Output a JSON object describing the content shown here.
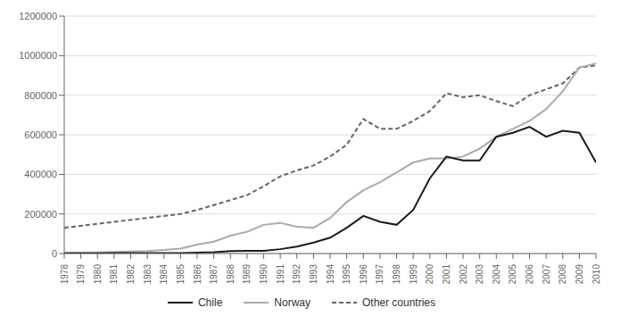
{
  "chart_data": {
    "type": "line",
    "x": [
      1978,
      1979,
      1980,
      1981,
      1982,
      1983,
      1984,
      1985,
      1986,
      1987,
      1988,
      1989,
      1990,
      1991,
      1992,
      1993,
      1994,
      1995,
      1996,
      1997,
      1998,
      1999,
      2000,
      2001,
      2002,
      2003,
      2004,
      2005,
      2006,
      2007,
      2008,
      2009,
      2010
    ],
    "series": [
      {
        "name": "Chile",
        "color": "#1a1a1a",
        "line_style": "solid",
        "values": [
          1000,
          1000,
          1500,
          2000,
          2000,
          2000,
          2000,
          2000,
          4000,
          7000,
          12000,
          14000,
          14000,
          22000,
          35000,
          55000,
          80000,
          130000,
          190000,
          160000,
          145000,
          220000,
          380000,
          490000,
          470000,
          470000,
          590000,
          610000,
          640000,
          590000,
          620000,
          610000,
          460000
        ]
      },
      {
        "name": "Norway",
        "color": "#aaaaaa",
        "line_style": "solid",
        "values": [
          4000,
          4000,
          6000,
          8000,
          10000,
          12000,
          18000,
          25000,
          45000,
          60000,
          90000,
          110000,
          145000,
          155000,
          135000,
          130000,
          180000,
          260000,
          320000,
          360000,
          410000,
          460000,
          480000,
          480000,
          490000,
          530000,
          590000,
          630000,
          670000,
          730000,
          820000,
          940000,
          960000
        ]
      },
      {
        "name": "Other countries",
        "color": "#666666",
        "line_style": "dashed",
        "values": [
          130000,
          140000,
          150000,
          160000,
          170000,
          180000,
          190000,
          200000,
          220000,
          245000,
          270000,
          295000,
          340000,
          390000,
          420000,
          445000,
          490000,
          550000,
          680000,
          630000,
          630000,
          670000,
          720000,
          810000,
          790000,
          800000,
          770000,
          745000,
          800000,
          830000,
          860000,
          940000,
          950000
        ]
      }
    ],
    "xlim": [
      1978,
      2010
    ],
    "xticks": [
      1978,
      1979,
      1980,
      1981,
      1982,
      1983,
      1984,
      1985,
      1986,
      1987,
      1988,
      1989,
      1990,
      1991,
      1992,
      1993,
      1994,
      1995,
      1996,
      1997,
      1998,
      1999,
      2000,
      2001,
      2002,
      2003,
      2004,
      2005,
      2006,
      2007,
      2008,
      2009,
      2010
    ],
    "ylim": [
      0,
      1200000
    ],
    "yticks": [
      0,
      200000,
      400000,
      600000,
      800000,
      1000000,
      1200000
    ],
    "grid": true,
    "legend": "bottom"
  }
}
